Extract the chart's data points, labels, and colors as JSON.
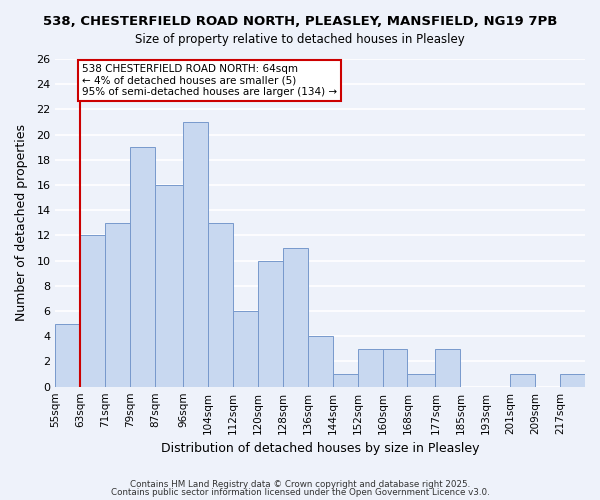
{
  "title": "538, CHESTERFIELD ROAD NORTH, PLEASLEY, MANSFIELD, NG19 7PB",
  "subtitle": "Size of property relative to detached houses in Pleasley",
  "xlabel": "Distribution of detached houses by size in Pleasley",
  "ylabel": "Number of detached properties",
  "bar_color": "#c8d8f0",
  "bar_edge_color": "#7799cc",
  "bins": [
    55,
    63,
    71,
    79,
    87,
    96,
    104,
    112,
    120,
    128,
    136,
    144,
    152,
    160,
    168,
    177,
    185,
    193,
    201,
    209,
    217,
    225
  ],
  "counts": [
    5,
    12,
    13,
    19,
    16,
    21,
    13,
    6,
    10,
    11,
    4,
    1,
    3,
    3,
    1,
    3,
    0,
    0,
    1,
    0,
    1
  ],
  "tick_labels": [
    "55sqm",
    "63sqm",
    "71sqm",
    "79sqm",
    "87sqm",
    "96sqm",
    "104sqm",
    "112sqm",
    "120sqm",
    "128sqm",
    "136sqm",
    "144sqm",
    "152sqm",
    "160sqm",
    "168sqm",
    "177sqm",
    "185sqm",
    "193sqm",
    "201sqm",
    "209sqm",
    "217sqm"
  ],
  "ylim": [
    0,
    26
  ],
  "yticks": [
    0,
    2,
    4,
    6,
    8,
    10,
    12,
    14,
    16,
    18,
    20,
    22,
    24,
    26
  ],
  "vline_x": 63,
  "vline_color": "#cc0000",
  "annotation_line1": "538 CHESTERFIELD ROAD NORTH: 64sqm",
  "annotation_line2": "← 4% of detached houses are smaller (5)",
  "annotation_line3": "95% of semi-detached houses are larger (134) →",
  "footer1": "Contains HM Land Registry data © Crown copyright and database right 2025.",
  "footer2": "Contains public sector information licensed under the Open Government Licence v3.0.",
  "background_color": "#eef2fa",
  "plot_bg_color": "#eef2fa",
  "grid_color": "#ffffff"
}
